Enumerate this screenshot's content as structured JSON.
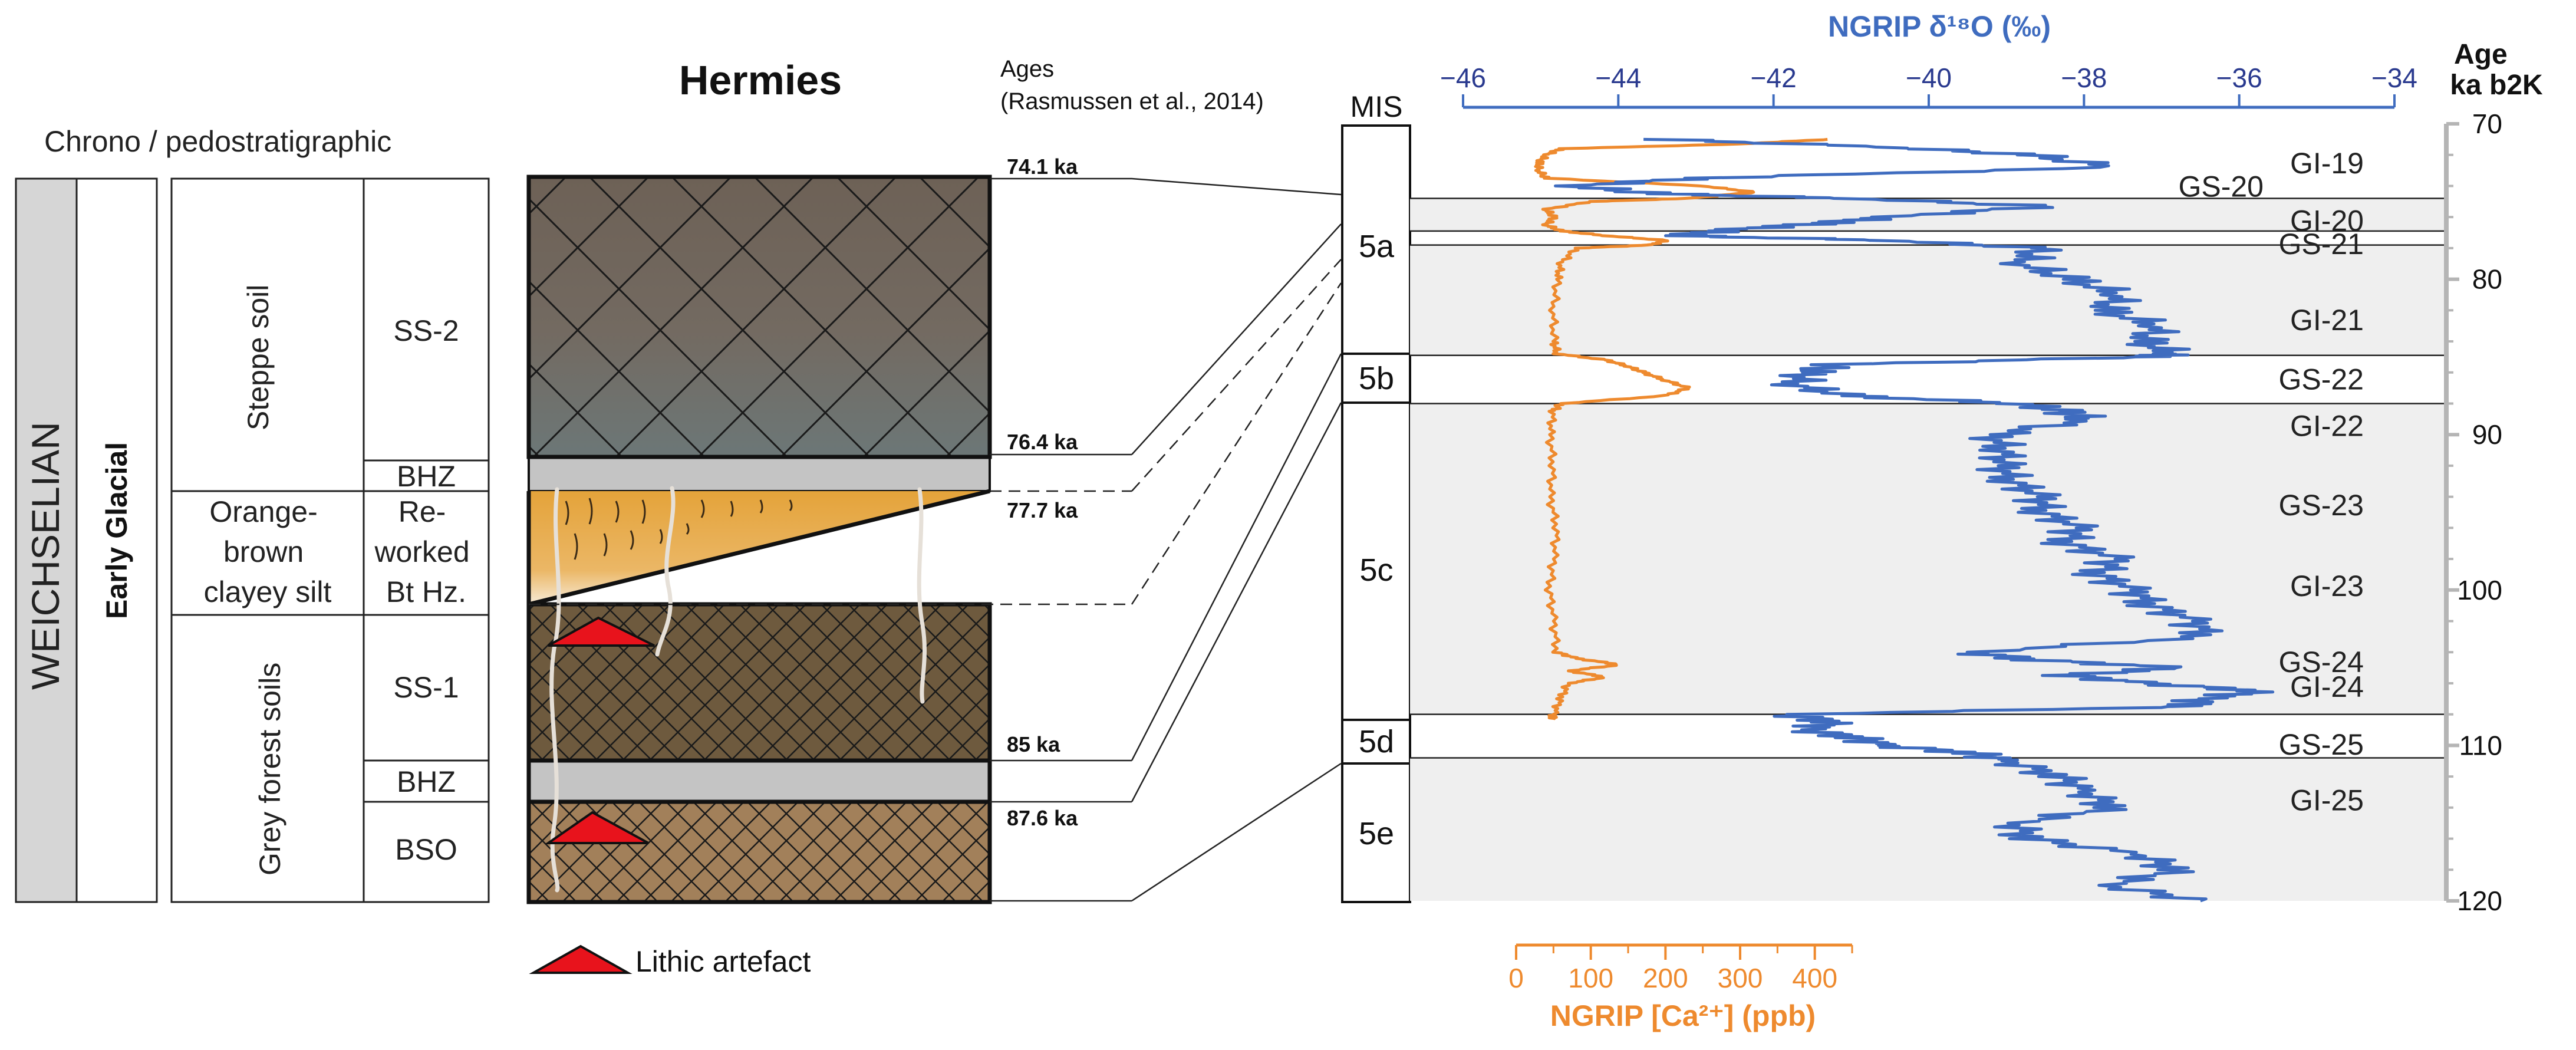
{
  "site_title": "Hermies",
  "ages_header": {
    "line1": "Ages",
    "line2": "(Rasmussen et al., 2014)"
  },
  "chrono_header": "Chrono / pedostratigraphic",
  "columns": {
    "weichselian": "WEICHSELIAN",
    "early_glacial": "Early Glacial"
  },
  "units": {
    "steppe": "Steppe soil",
    "orange": [
      "Orange-",
      "brown",
      "clayey silt"
    ],
    "grey_forest": "Grey forest soils"
  },
  "horizons": {
    "ss2": "SS-2",
    "bhz_upper": "BHZ",
    "reworked": [
      "Re-",
      "worked",
      "Bt Hz."
    ],
    "ss1": "SS-1",
    "bhz_lower": "BHZ",
    "bso": "BSO"
  },
  "ages": [
    "74.1 ka",
    "76.4 ka",
    "77.7 ka",
    "85 ka",
    "87.6 ka"
  ],
  "mis_header": "MIS",
  "mis": [
    "5a",
    "5b",
    "5c",
    "5d",
    "5e"
  ],
  "legend": {
    "lithic": "Lithic artefact"
  },
  "colors": {
    "d18o": "#3f6cbf",
    "ca": "#ee8a2e",
    "axis_blue": "#2a3a8f",
    "band": "#efefef",
    "red": "#e8131c"
  },
  "chart_data": {
    "type": "line",
    "title": "",
    "top_axis_label": "NGRIP δ¹⁸O (‰)",
    "top_axis_ticks": [
      "−46",
      "−44",
      "−42",
      "−40",
      "−38",
      "−36",
      "−34"
    ],
    "top_axis_range": [
      -46,
      -34
    ],
    "bottom_axis_label": "NGRIP [Ca²⁺] (ppb)",
    "bottom_axis_ticks": [
      "0",
      "100",
      "200",
      "300",
      "400"
    ],
    "bottom_axis_range": [
      0,
      450
    ],
    "right_axis_label": [
      "Age",
      "ka b2K"
    ],
    "right_axis_ticks": [
      "70",
      "80",
      "90",
      "100",
      "110",
      "120"
    ],
    "right_axis_range": [
      70,
      120
    ],
    "events": [
      {
        "label": "GI-19",
        "age": 72.5
      },
      {
        "label": "GS-20",
        "age": 74.0
      },
      {
        "label": "GI-20",
        "age": 76.2
      },
      {
        "label": "GS-21",
        "age": 77.7
      },
      {
        "label": "GI-21",
        "age": 82.6
      },
      {
        "label": "GS-22",
        "age": 86.4
      },
      {
        "label": "GI-22",
        "age": 89.4
      },
      {
        "label": "GS-23",
        "age": 94.5
      },
      {
        "label": "GI-23",
        "age": 99.7
      },
      {
        "label": "GS-24",
        "age": 104.6
      },
      {
        "label": "GI-24",
        "age": 106.2
      },
      {
        "label": "GS-25",
        "age": 109.9
      },
      {
        "label": "GI-25",
        "age": 113.5
      }
    ],
    "interstadial_bands": [
      [
        74.8,
        76.9
      ],
      [
        77.8,
        84.9
      ],
      [
        88.0,
        108.0
      ],
      [
        110.8,
        120.0
      ]
    ],
    "d18o": {
      "name": "NGRIP δ¹⁸O",
      "age": [
        71,
        71.5,
        72,
        72.8,
        73.5,
        74,
        74.5,
        74.8,
        75.3,
        76,
        76.4,
        76.8,
        77.2,
        77.5,
        78,
        79,
        80,
        81,
        82,
        83,
        84,
        84.8,
        85,
        85.5,
        86,
        86.8,
        87.5,
        88,
        88.5,
        89,
        90,
        91,
        92,
        93,
        94,
        95,
        96,
        97,
        98,
        99,
        100,
        101,
        102,
        103,
        104,
        104.5,
        105,
        105.5,
        106,
        106.5,
        107,
        107.5,
        108,
        108.5,
        109,
        109.5,
        110,
        110.5,
        111,
        112,
        113,
        114,
        115,
        116,
        117,
        118,
        119,
        120
      ],
      "value": [
        -43.5,
        -40.5,
        -38.7,
        -37.6,
        -43,
        -44.6,
        -43.5,
        -41,
        -38.5,
        -40.5,
        -41.4,
        -42.5,
        -43.3,
        -40.5,
        -38.6,
        -38.8,
        -38.2,
        -37.5,
        -37.8,
        -37,
        -37.3,
        -36.8,
        -37.3,
        -41.2,
        -41.6,
        -41.7,
        -41.1,
        -38.8,
        -38.3,
        -37.9,
        -39.2,
        -39,
        -39.1,
        -38.9,
        -38.6,
        -38.5,
        -38.1,
        -38.2,
        -37.6,
        -37.8,
        -37.4,
        -37.1,
        -36.6,
        -36.4,
        -39.5,
        -38.6,
        -36.8,
        -38.2,
        -37.2,
        -35.7,
        -36.5,
        -36.6,
        -41.8,
        -41.2,
        -41.6,
        -40.9,
        -40.6,
        -39.4,
        -39,
        -38.3,
        -38,
        -37.6,
        -38.9,
        -38.7,
        -37.3,
        -36.8,
        -37.7,
        -36.5
      ]
    },
    "ca": {
      "name": "NGRIP [Ca²⁺]",
      "age": [
        71,
        71.3,
        71.6,
        72,
        72.5,
        73,
        73.5,
        74,
        74.4,
        74.8,
        75,
        75.5,
        76,
        76.5,
        76.9,
        77.2,
        77.5,
        77.8,
        78,
        79,
        80,
        82,
        84,
        84.8,
        85.2,
        85.6,
        86,
        86.5,
        87,
        87.5,
        88,
        88.5,
        90,
        92,
        94,
        96,
        98,
        100,
        102,
        104,
        104.4,
        104.8,
        105.2,
        105.6,
        106,
        107,
        108,
        108.3
      ],
      "value": [
        420,
        300,
        60,
        40,
        30,
        30,
        40,
        250,
        320,
        230,
        100,
        40,
        50,
        40,
        60,
        120,
        200,
        180,
        80,
        60,
        55,
        50,
        50,
        55,
        120,
        150,
        170,
        200,
        230,
        200,
        60,
        50,
        45,
        50,
        45,
        55,
        50,
        45,
        50,
        55,
        80,
        140,
        70,
        120,
        70,
        60,
        50,
        50
      ]
    }
  }
}
